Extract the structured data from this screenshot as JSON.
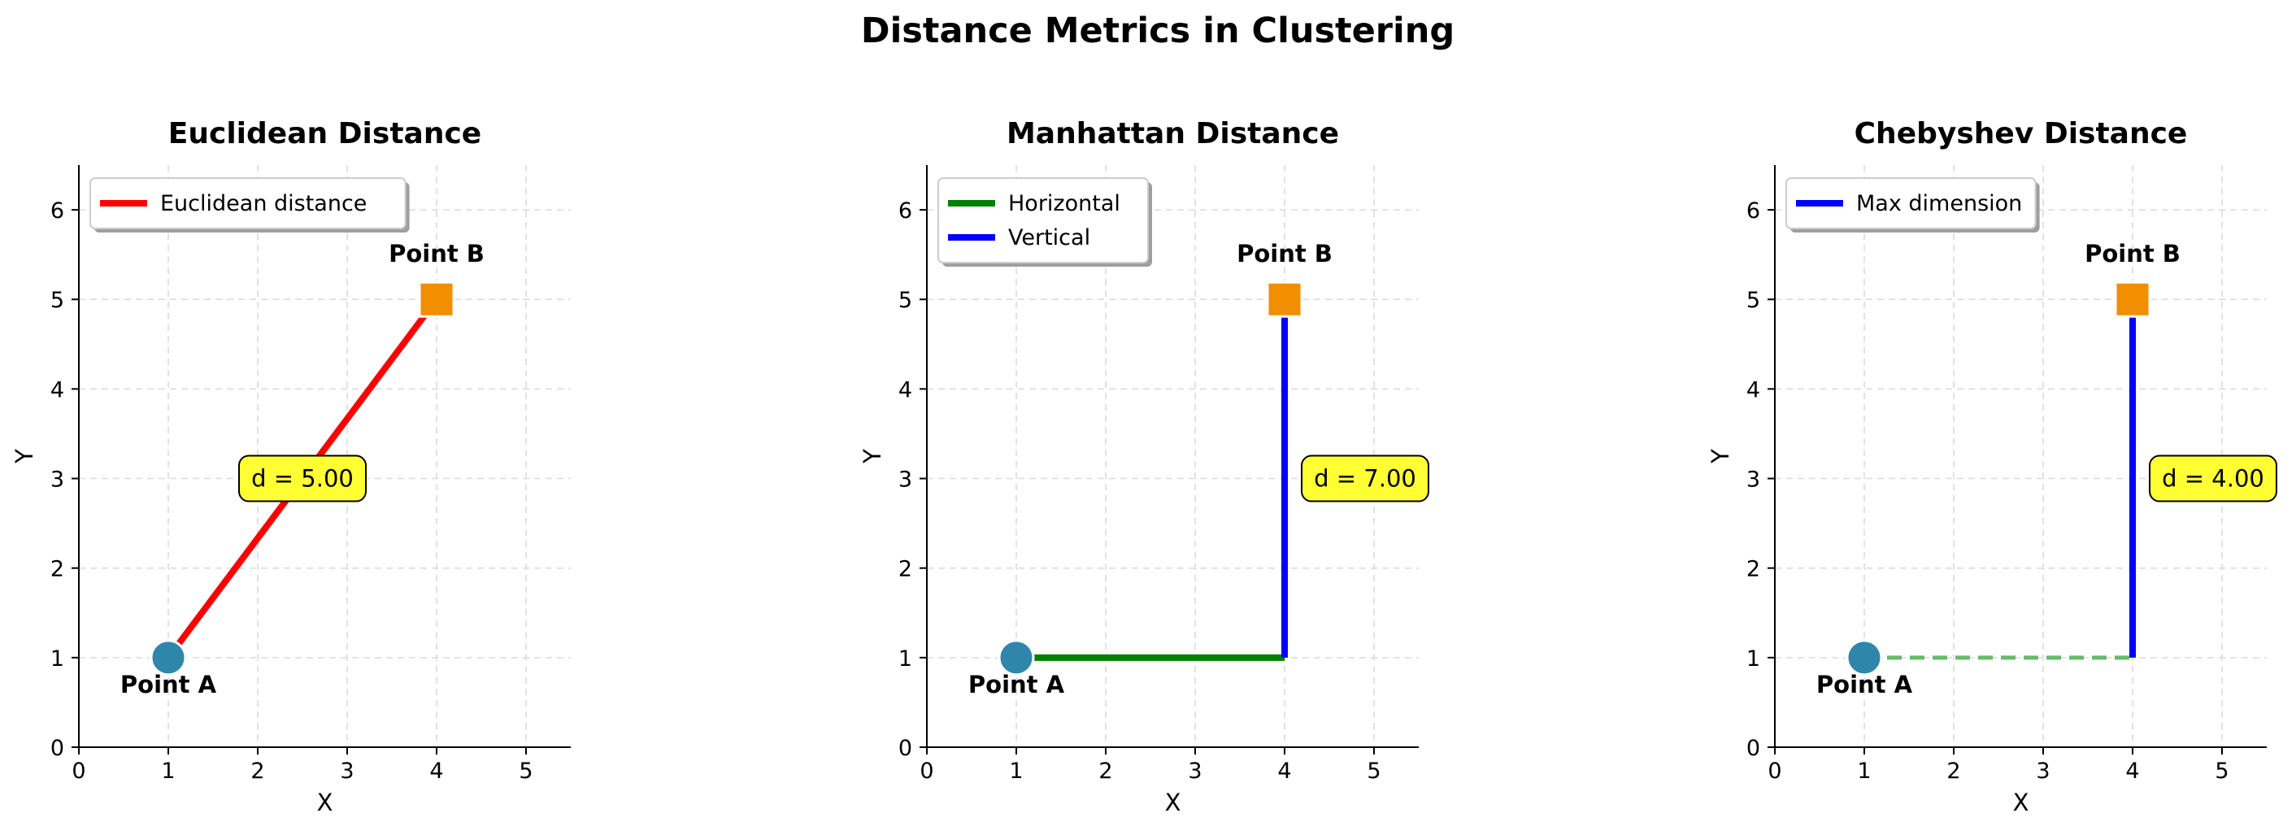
{
  "figure": {
    "title": "Distance Metrics in Clustering"
  },
  "colors": {
    "point_a": "#2E86AB",
    "point_b": "#F18F01",
    "euclid_line": "#FF0000",
    "horizontal": "#008000",
    "vertical": "#0000FF",
    "dashed_minor": "#66BB6A",
    "annotation_bg": "#FFFF33",
    "grid": "#d9d9d9"
  },
  "chart_data": [
    {
      "type": "line",
      "title": "Euclidean Distance",
      "xlabel": "X",
      "ylabel": "Y",
      "xlim": [
        0,
        5.5
      ],
      "ylim": [
        0,
        6.5
      ],
      "xticks": [
        0,
        1,
        2,
        3,
        4,
        5
      ],
      "yticks": [
        0,
        1,
        2,
        3,
        4,
        5,
        6
      ],
      "grid": true,
      "legend_position": "upper-left",
      "points": [
        {
          "label": "Point A",
          "x": 1,
          "y": 1,
          "marker": "circle",
          "color_key": "point_a"
        },
        {
          "label": "Point B",
          "x": 4,
          "y": 5,
          "marker": "square",
          "color_key": "point_b"
        }
      ],
      "segments": [
        {
          "name": "Euclidean distance",
          "x1": 1,
          "y1": 1,
          "x2": 4,
          "y2": 5,
          "color_key": "euclid_line",
          "dashed": false,
          "legend": true
        }
      ],
      "annotation": {
        "text": "d = 5.00",
        "x": 2.5,
        "y": 3
      }
    },
    {
      "type": "line",
      "title": "Manhattan Distance",
      "xlabel": "X",
      "ylabel": "Y",
      "xlim": [
        0,
        5.5
      ],
      "ylim": [
        0,
        6.5
      ],
      "xticks": [
        0,
        1,
        2,
        3,
        4,
        5
      ],
      "yticks": [
        0,
        1,
        2,
        3,
        4,
        5,
        6
      ],
      "grid": true,
      "legend_position": "upper-left",
      "points": [
        {
          "label": "Point A",
          "x": 1,
          "y": 1,
          "marker": "circle",
          "color_key": "point_a"
        },
        {
          "label": "Point B",
          "x": 4,
          "y": 5,
          "marker": "square",
          "color_key": "point_b"
        }
      ],
      "segments": [
        {
          "name": "Horizontal",
          "x1": 1,
          "y1": 1,
          "x2": 4,
          "y2": 1,
          "color_key": "horizontal",
          "dashed": false,
          "legend": true
        },
        {
          "name": "Vertical",
          "x1": 4,
          "y1": 1,
          "x2": 4,
          "y2": 5,
          "color_key": "vertical",
          "dashed": false,
          "legend": true
        }
      ],
      "annotation": {
        "text": "d = 7.00",
        "x": 4.9,
        "y": 3
      }
    },
    {
      "type": "line",
      "title": "Chebyshev Distance",
      "xlabel": "X",
      "ylabel": "Y",
      "xlim": [
        0,
        5.5
      ],
      "ylim": [
        0,
        6.5
      ],
      "xticks": [
        0,
        1,
        2,
        3,
        4,
        5
      ],
      "yticks": [
        0,
        1,
        2,
        3,
        4,
        5,
        6
      ],
      "grid": true,
      "legend_position": "upper-left",
      "points": [
        {
          "label": "Point A",
          "x": 1,
          "y": 1,
          "marker": "circle",
          "color_key": "point_a"
        },
        {
          "label": "Point B",
          "x": 4,
          "y": 5,
          "marker": "square",
          "color_key": "point_b"
        }
      ],
      "segments": [
        {
          "name": "",
          "x1": 1,
          "y1": 1,
          "x2": 4,
          "y2": 1,
          "color_key": "dashed_minor",
          "dashed": true,
          "legend": false
        },
        {
          "name": "Max dimension",
          "x1": 4,
          "y1": 1,
          "x2": 4,
          "y2": 5,
          "color_key": "vertical",
          "dashed": false,
          "legend": true
        }
      ],
      "annotation": {
        "text": "d = 4.00",
        "x": 4.9,
        "y": 3
      }
    }
  ]
}
